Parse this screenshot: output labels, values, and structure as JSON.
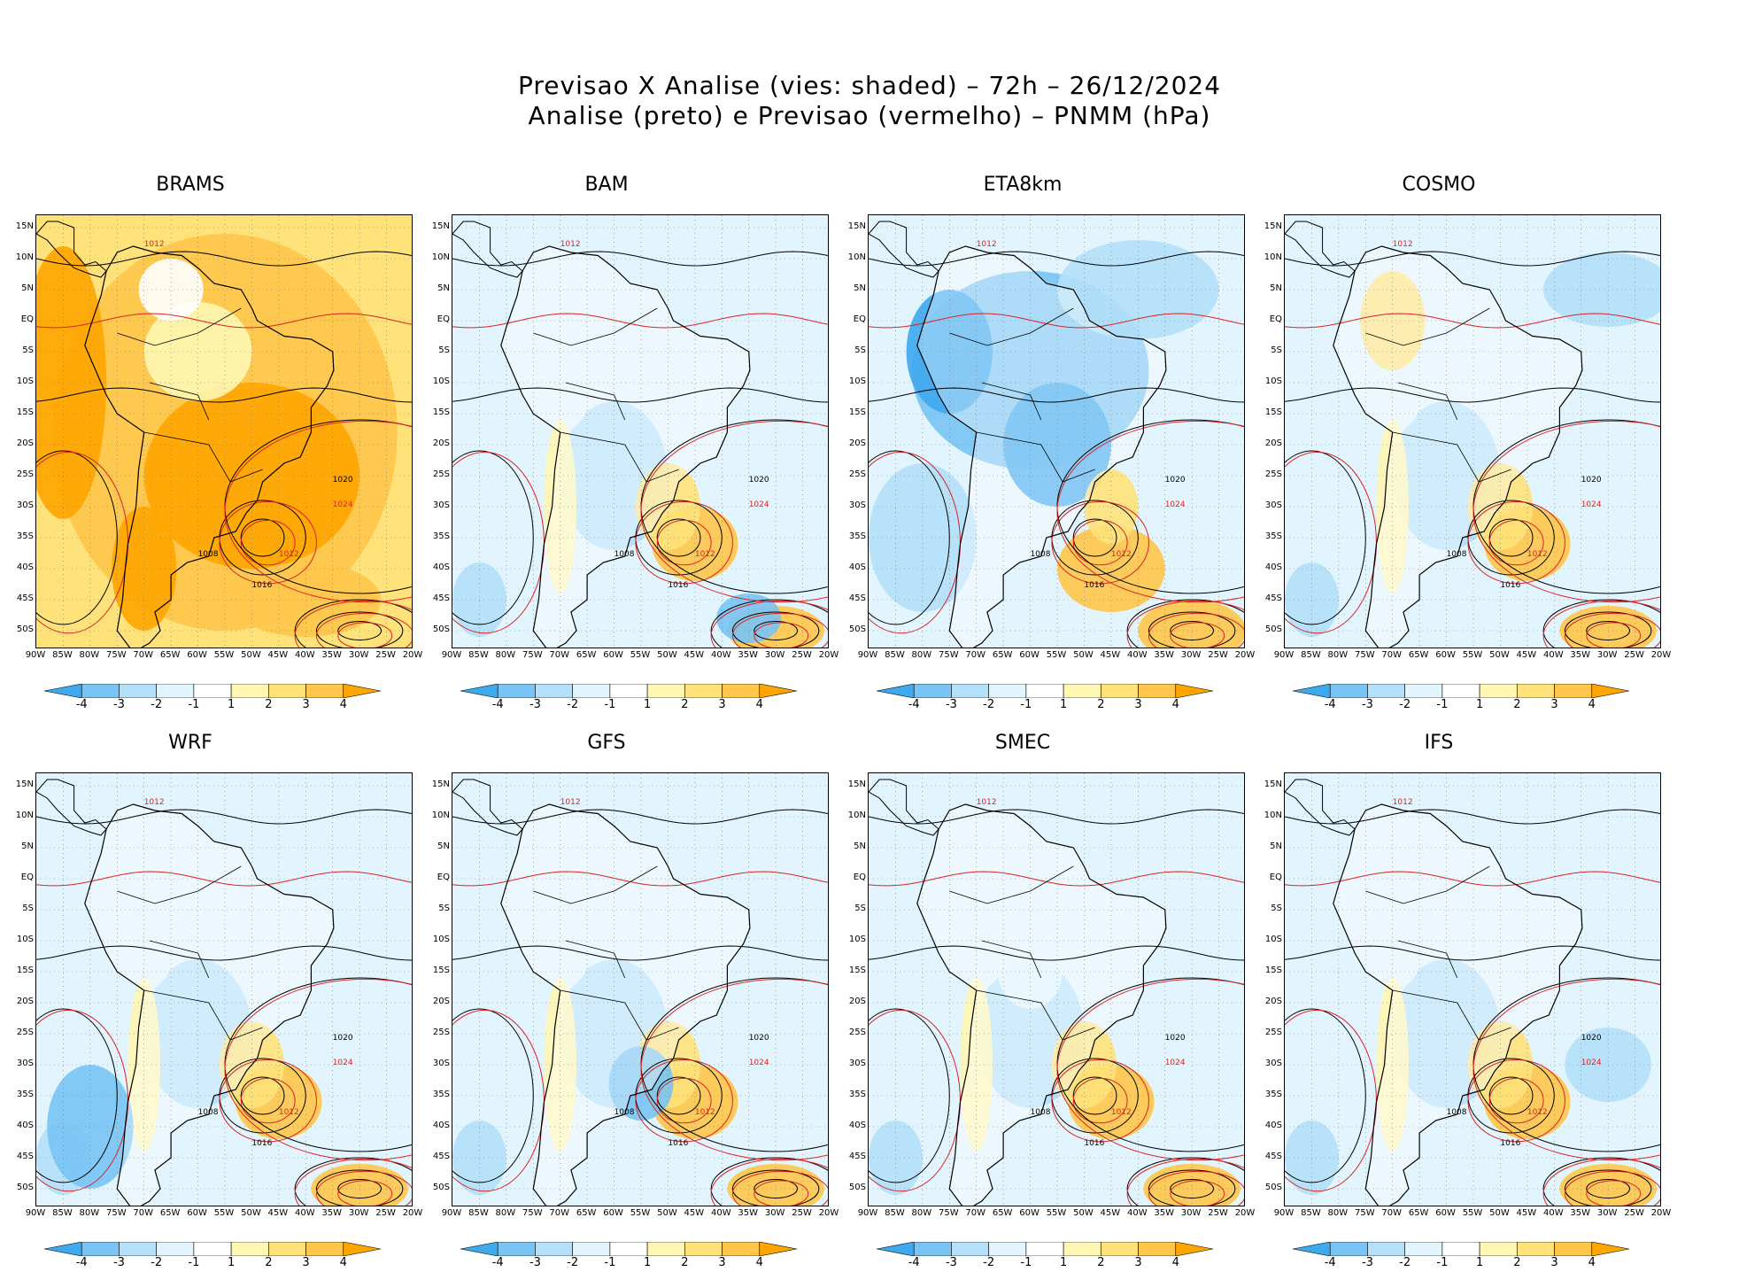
{
  "title_line1": "Previsao X Analise (vies: shaded) – 72h – 26/12/2024",
  "title_line2": "Analise (preto) e Previsao (vermelho) – PNMM (hPa)",
  "lat_labels": [
    "15N",
    "10N",
    "5N",
    "EQ",
    "5S",
    "10S",
    "15S",
    "20S",
    "25S",
    "30S",
    "35S",
    "40S",
    "45S",
    "50S"
  ],
  "lon_labels": [
    "90W",
    "85W",
    "80W",
    "75W",
    "70W",
    "65W",
    "60W",
    "55W",
    "50W",
    "45W",
    "40W",
    "35W",
    "30W",
    "25W",
    "20W"
  ],
  "colorbar_ticks": [
    "-4",
    "-3",
    "-2",
    "-1",
    "1",
    "2",
    "3",
    "4"
  ],
  "colors": {
    "neg4": "#3fa9ee",
    "neg3": "#79c4f4",
    "neg2": "#b4e0fa",
    "neg1": "#e2f5fe",
    "zero": "#ffffff",
    "pos1": "#fff6b3",
    "pos2": "#ffe27a",
    "pos3": "#ffc64a",
    "pos4": "#ffa500",
    "analysis": "#000000",
    "forecast": "#dd2222",
    "grid": "#777777"
  },
  "panels": [
    {
      "name": "BRAMS",
      "bias": "warm"
    },
    {
      "name": "BAM",
      "bias": "mixed"
    },
    {
      "name": "ETA8km",
      "bias": "cold"
    },
    {
      "name": "COSMO",
      "bias": "mixed"
    },
    {
      "name": "WRF",
      "bias": "mixed"
    },
    {
      "name": "GFS",
      "bias": "mixed"
    },
    {
      "name": "SMEC",
      "bias": "mixed"
    },
    {
      "name": "IFS",
      "bias": "mixed"
    }
  ],
  "isobar_labels": [
    "1008",
    "1012",
    "1016",
    "1020",
    "1024"
  ]
}
